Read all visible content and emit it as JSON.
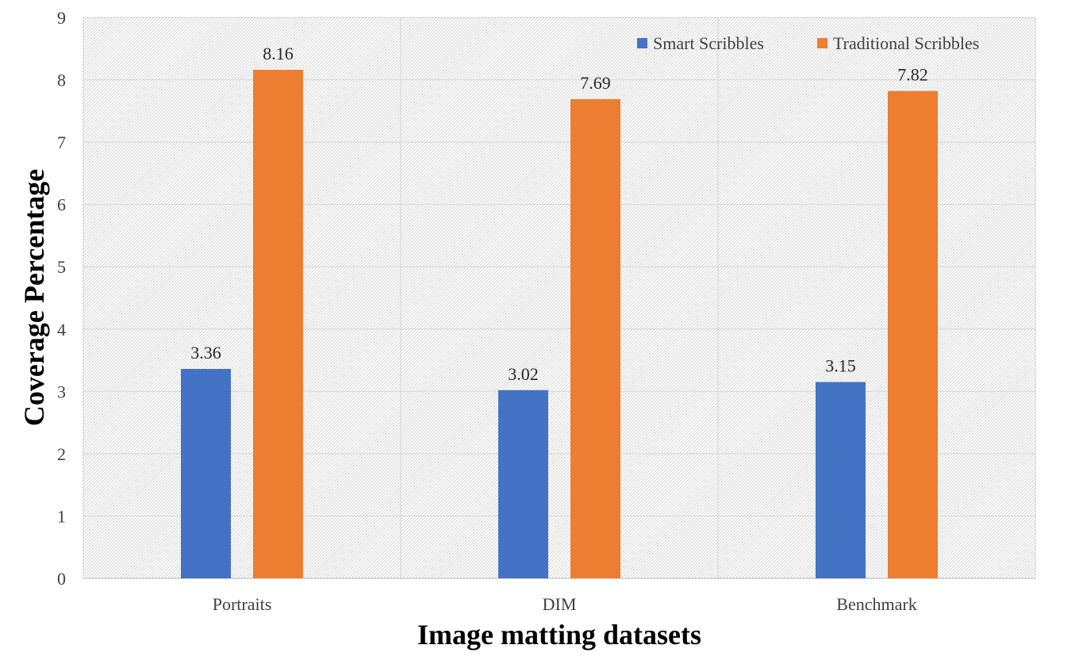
{
  "chart_data": {
    "type": "bar",
    "title": "",
    "xlabel": "Image matting datasets",
    "ylabel": "Coverage Percentage",
    "categories": [
      "Portraits",
      "DIM",
      "Benchmark"
    ],
    "series": [
      {
        "name": "Smart Scribbles",
        "color": "#4472C4",
        "values": [
          3.36,
          3.02,
          3.15
        ]
      },
      {
        "name": "Traditional Scribbles",
        "color": "#ED7D31",
        "values": [
          8.16,
          7.69,
          7.82
        ]
      }
    ],
    "ylim": [
      0,
      9
    ],
    "yticks": [
      "0",
      "1",
      "2",
      "3",
      "4",
      "5",
      "6",
      "7",
      "8",
      "9"
    ],
    "grid": true,
    "legend_position": "top-right",
    "data_labels": true
  }
}
